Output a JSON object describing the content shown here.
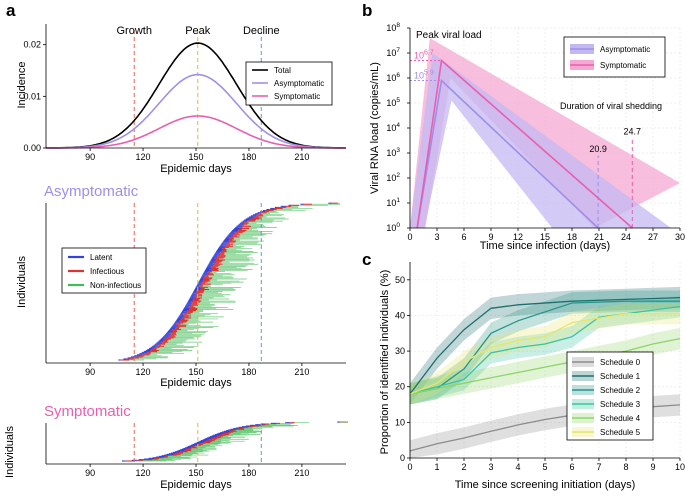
{
  "panels": {
    "a": "a",
    "b": "b",
    "c": "c"
  },
  "chart_data": [
    {
      "id": "a_top",
      "type": "line",
      "title": "",
      "xlabel": "Epidemic days",
      "ylabel": "Incidence",
      "xlim": [
        65,
        235
      ],
      "ylim": [
        0,
        0.024
      ],
      "xticks": [
        90,
        120,
        150,
        180,
        210
      ],
      "yticks": [
        0.0,
        0.01,
        0.02
      ],
      "ytick_labels": [
        "0.00",
        "0.01",
        "0.02"
      ],
      "phase_lines": [
        {
          "label": "Growth",
          "x": 115,
          "color": "#ee6655"
        },
        {
          "label": "Peak",
          "x": 151,
          "color": "#f0b429"
        },
        {
          "label": "Decline",
          "x": 187,
          "color": "#5b9bd5"
        }
      ],
      "series": [
        {
          "name": "Total",
          "color": "#000000",
          "peak_x": 151,
          "peak_y": 0.0203,
          "sd": 22
        },
        {
          "name": "Asymptomatic",
          "color": "#9f8fe8",
          "peak_x": 151,
          "peak_y": 0.0142,
          "sd": 22
        },
        {
          "name": "Symptomatic",
          "color": "#e85fb0",
          "peak_x": 151,
          "peak_y": 0.0062,
          "sd": 22
        }
      ],
      "legend": [
        "Total",
        "Asymptomatic",
        "Symptomatic"
      ]
    },
    {
      "id": "a_middle",
      "type": "area",
      "title": "Asymptomatic",
      "xlabel": "Epidemic days",
      "ylabel": "Individuals",
      "xlim": [
        65,
        235
      ],
      "xticks": [
        90,
        120,
        150,
        180,
        210
      ],
      "legend": [
        {
          "name": "Latent",
          "color": "#3344dd"
        },
        {
          "name": "Infectious",
          "color": "#dd3333"
        },
        {
          "name": "Non-infectious",
          "color": "#44bb55"
        }
      ]
    },
    {
      "id": "a_bottom",
      "type": "area",
      "title": "Symptomatic",
      "xlabel": "Epidemic days",
      "ylabel": "Individuals",
      "xlim": [
        65,
        235
      ],
      "xticks": [
        90,
        120,
        150,
        180,
        210
      ]
    },
    {
      "id": "b",
      "type": "line",
      "title": "Peak viral load",
      "xlabel": "Time since infection (days)",
      "ylabel": "Viral RNA load (copies/mL)",
      "xlim": [
        0,
        30
      ],
      "ylim_log10": [
        0,
        8
      ],
      "xticks": [
        0,
        3,
        6,
        9,
        12,
        15,
        18,
        21,
        24,
        27,
        30
      ],
      "yticks_log10": [
        0,
        1,
        2,
        3,
        4,
        5,
        6,
        7,
        8
      ],
      "ytick_base": "10",
      "series": [
        {
          "name": "Asymptomatic",
          "color": "#9f8fe8",
          "fill": "#c4b8f2",
          "x": [
            0.8,
            3.5,
            20.9
          ],
          "y_log10": [
            0,
            5.9,
            0
          ],
          "band_upper": [
            [
              0,
              0
            ],
            [
              2.5,
              7.0
            ],
            [
              29,
              0
            ]
          ],
          "band_lower": [
            [
              1.6,
              0
            ],
            [
              4.6,
              5.1
            ],
            [
              15.8,
              0
            ]
          ],
          "peak_label_exp": "5.9",
          "shedding": 20.9,
          "shedding_label": "20.9"
        },
        {
          "name": "Symptomatic",
          "color": "#e85fb0",
          "fill": "#f5a8d2",
          "x": [
            0.8,
            3.5,
            24.7
          ],
          "y_log10": [
            0,
            6.7,
            0
          ],
          "band_upper": [
            [
              0,
              0
            ],
            [
              2.2,
              7.6
            ],
            [
              30,
              1.8
            ]
          ],
          "band_lower": [
            [
              1.7,
              0
            ],
            [
              4.5,
              6.0
            ],
            [
              20.5,
              0
            ]
          ],
          "peak_label_exp": "6.7",
          "shedding": 24.7,
          "shedding_label": "24.7"
        }
      ],
      "annotation": "Duration of viral shedding",
      "legend": [
        "Asymptomatic",
        "Symptomatic"
      ]
    },
    {
      "id": "c",
      "type": "line",
      "title": "",
      "xlabel": "Time since screening initiation (days)",
      "ylabel": "Proportion of identified individuals (%)",
      "xlim": [
        0,
        10
      ],
      "ylim": [
        0,
        55
      ],
      "xticks": [
        0,
        1,
        2,
        3,
        4,
        5,
        6,
        7,
        8,
        9,
        10
      ],
      "yticks": [
        0,
        10,
        20,
        30,
        40,
        50
      ],
      "series": [
        {
          "name": "Schedule 0",
          "color": "#8c8c8c",
          "band": 3,
          "x": [
            0,
            1,
            2,
            3,
            4,
            5,
            6,
            7,
            8,
            9,
            10
          ],
          "values": [
            2,
            4,
            5.6,
            7.5,
            9.3,
            10.8,
            12,
            13,
            13.8,
            14.4,
            14.9
          ]
        },
        {
          "name": "Schedule 1",
          "color": "#1f6f6f",
          "band": 3,
          "x": [
            0,
            1,
            2,
            3,
            4,
            6,
            8,
            10
          ],
          "values": [
            18,
            28,
            36,
            42,
            43,
            44,
            44.5,
            45
          ]
        },
        {
          "name": "Schedule 2",
          "color": "#27968a",
          "band": 3,
          "x": [
            0,
            1,
            2,
            3,
            4,
            6,
            8,
            10
          ],
          "values": [
            18,
            19.5,
            25,
            35,
            38.5,
            43.5,
            44,
            44
          ]
        },
        {
          "name": "Schedule 3",
          "color": "#3cc3a0",
          "band": 3,
          "x": [
            0,
            1,
            2,
            3,
            4,
            5,
            6,
            7,
            8,
            10
          ],
          "values": [
            18,
            20,
            22,
            29.5,
            31,
            32,
            34,
            39.5,
            40.5,
            42.5
          ]
        },
        {
          "name": "Schedule 4",
          "color": "#8ed468",
          "band": 3,
          "x": [
            0,
            1,
            2,
            3,
            4,
            5,
            6,
            7,
            8,
            9,
            10
          ],
          "values": [
            18,
            19.5,
            21,
            22.5,
            24,
            25.5,
            27,
            28.5,
            30,
            32,
            33.5
          ]
        },
        {
          "name": "Schedule 5",
          "color": "#e6e66a",
          "band": 3,
          "x": [
            0,
            1,
            2,
            3,
            4,
            5,
            6,
            8,
            10
          ],
          "values": [
            18,
            21,
            27,
            31,
            33,
            34,
            38,
            40.5,
            40.5
          ]
        }
      ],
      "legend": [
        "Schedule 0",
        "Schedule 1",
        "Schedule 2",
        "Schedule 3",
        "Schedule 4",
        "Schedule 5"
      ]
    }
  ]
}
